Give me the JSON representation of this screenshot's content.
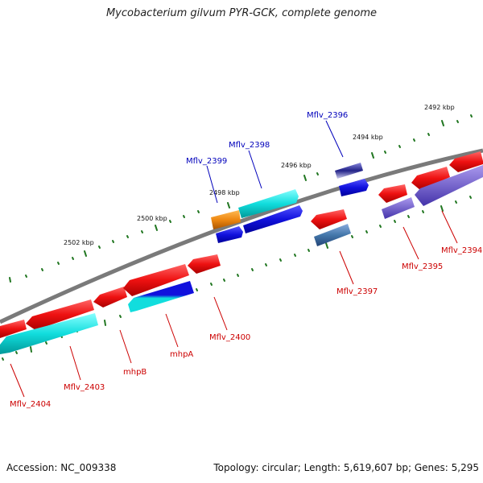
{
  "title": "Mycobacterium gilvum PYR-GCK, complete genome",
  "footer": {
    "accession": "Accession: NC_009338",
    "topology": "Topology: circular; Length: 5,619,607 bp; Genes: 5,295"
  },
  "colors": {
    "backbone": "#808080",
    "ticks": "#227722",
    "red_gene": "#ee1111",
    "cyan_gene": "#11dddd",
    "blue_gene": "#1111dd",
    "orange_gene": "#ee8811",
    "lavender_gene": "#7766cc",
    "steel_gene": "#4477aa",
    "label_red": "#cc0000",
    "label_blue": "#0000bb"
  },
  "scale_labels": [
    {
      "text": "2492 kbp"
    },
    {
      "text": "2494 kbp"
    },
    {
      "text": "2496 kbp"
    },
    {
      "text": "2498 kbp"
    },
    {
      "text": "2500 kbp"
    },
    {
      "text": "2502 kbp"
    }
  ],
  "gene_labels": [
    {
      "text": "Mflv_2396",
      "strand": "forward"
    },
    {
      "text": "Mflv_2398",
      "strand": "forward"
    },
    {
      "text": "Mflv_2399",
      "strand": "forward"
    },
    {
      "text": "Mflv_2394",
      "strand": "reverse"
    },
    {
      "text": "Mflv_2395",
      "strand": "reverse"
    },
    {
      "text": "Mflv_2397",
      "strand": "reverse"
    },
    {
      "text": "Mflv_2400",
      "strand": "reverse"
    },
    {
      "text": "mhpA",
      "strand": "reverse"
    },
    {
      "text": "mhpB",
      "strand": "reverse"
    },
    {
      "text": "Mflv_2403",
      "strand": "reverse"
    },
    {
      "text": "Mflv_2404",
      "strand": "reverse"
    }
  ]
}
